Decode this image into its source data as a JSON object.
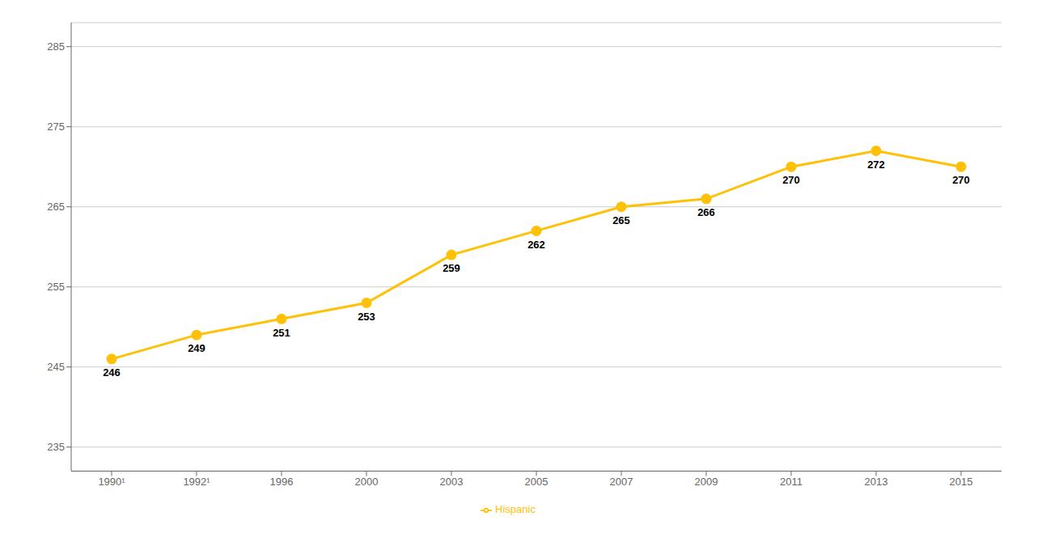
{
  "chart_data": {
    "type": "line",
    "categories": [
      "1990¹",
      "1992¹",
      "1996",
      "2000",
      "2003",
      "2005",
      "2007",
      "2009",
      "2011",
      "2013",
      "2015"
    ],
    "series": [
      {
        "name": "Hispanic",
        "color": "#FFC107",
        "values": [
          246,
          249,
          251,
          253,
          259,
          262,
          265,
          266,
          270,
          272,
          270
        ]
      }
    ],
    "ylim": [
      232,
      288
    ],
    "yticks": [
      235,
      245,
      255,
      265,
      275,
      285
    ],
    "grid": true,
    "legend": "bottom",
    "data_labels": true,
    "marker": "circle"
  }
}
